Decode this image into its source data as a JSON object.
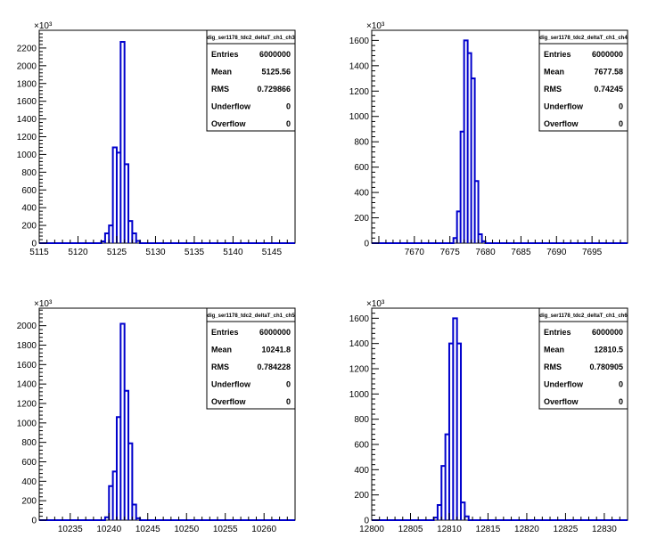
{
  "chart_data": [
    {
      "type": "histogram",
      "stats": {
        "title": "dig_ser1178_tdc2_deltaT_ch1_ch3",
        "rows": [
          {
            "label": "Entries",
            "value": "6000000"
          },
          {
            "label": "Mean",
            "value": "5125.56"
          },
          {
            "label": "RMS",
            "value": "0.729866"
          },
          {
            "label": "Underflow",
            "value": "0"
          },
          {
            "label": "Overflow",
            "value": "0"
          }
        ]
      },
      "xlim": [
        5115,
        5148
      ],
      "ylim": [
        0,
        2400
      ],
      "y_exponent": "×10³",
      "xticks": [
        5115,
        5120,
        5125,
        5130,
        5135,
        5140,
        5145
      ],
      "xtick_labels": [
        "5115",
        "5120",
        "5125",
        "5130",
        "5135",
        "5140",
        "5145"
      ],
      "yticks": [
        0,
        200,
        400,
        600,
        800,
        1000,
        1200,
        1400,
        1600,
        1800,
        2000,
        2200
      ],
      "ytick_labels": [
        "0",
        "200",
        "400",
        "600",
        "800",
        "1000",
        "1200",
        "1400",
        "1600",
        "1800",
        "2000",
        "2200"
      ],
      "bins": [
        [
          5123.0,
          5123.5,
          20
        ],
        [
          5123.5,
          5124.0,
          110
        ],
        [
          5124.0,
          5124.5,
          200
        ],
        [
          5124.5,
          5125.0,
          1080
        ],
        [
          5125.0,
          5125.5,
          1020
        ],
        [
          5125.5,
          5126.0,
          2270
        ],
        [
          5126.0,
          5126.5,
          890
        ],
        [
          5126.5,
          5127.0,
          250
        ],
        [
          5127.0,
          5127.5,
          110
        ],
        [
          5127.5,
          5128.0,
          25
        ]
      ],
      "color": "#0000cc"
    },
    {
      "type": "histogram",
      "stats": {
        "title": "dig_ser1178_tdc2_deltaT_ch1_ch4",
        "rows": [
          {
            "label": "Entries",
            "value": "6000000"
          },
          {
            "label": "Mean",
            "value": "7677.58"
          },
          {
            "label": "RMS",
            "value": "0.74245"
          },
          {
            "label": "Underflow",
            "value": "0"
          },
          {
            "label": "Overflow",
            "value": "0"
          }
        ]
      },
      "xlim": [
        7664,
        7700
      ],
      "ylim": [
        0,
        1680
      ],
      "y_exponent": "×10³",
      "xticks": [
        7670,
        7675,
        7680,
        7685,
        7690,
        7695
      ],
      "xtick_labels": [
        "7670",
        "7675",
        "7680",
        "7685",
        "7690",
        "7695"
      ],
      "yticks": [
        0,
        200,
        400,
        600,
        800,
        1000,
        1200,
        1400,
        1600
      ],
      "ytick_labels": [
        "0",
        "200",
        "400",
        "600",
        "800",
        "1000",
        "1200",
        "1400",
        "1600"
      ],
      "bins": [
        [
          7675.5,
          7676.0,
          40
        ],
        [
          7676.0,
          7676.5,
          250
        ],
        [
          7676.5,
          7677.0,
          880
        ],
        [
          7677.0,
          7677.5,
          1600
        ],
        [
          7677.5,
          7678.0,
          1500
        ],
        [
          7678.0,
          7678.5,
          1300
        ],
        [
          7678.5,
          7679.0,
          490
        ],
        [
          7679.0,
          7679.5,
          70
        ],
        [
          7679.5,
          7680.0,
          15
        ]
      ],
      "color": "#0000cc"
    },
    {
      "type": "histogram",
      "stats": {
        "title": "dig_ser1178_tdc2_deltaT_ch1_ch5",
        "rows": [
          {
            "label": "Entries",
            "value": "6000000"
          },
          {
            "label": "Mean",
            "value": "10241.8"
          },
          {
            "label": "RMS",
            "value": "0.784228"
          },
          {
            "label": "Underflow",
            "value": "0"
          },
          {
            "label": "Overflow",
            "value": "0"
          }
        ]
      },
      "xlim": [
        10231,
        10264
      ],
      "ylim": [
        0,
        2180
      ],
      "y_exponent": "×10³",
      "xticks": [
        10235,
        10240,
        10245,
        10250,
        10255,
        10260
      ],
      "xtick_labels": [
        "10235",
        "10240",
        "10245",
        "10250",
        "10255",
        "10260"
      ],
      "yticks": [
        0,
        200,
        400,
        600,
        800,
        1000,
        1200,
        1400,
        1600,
        1800,
        2000
      ],
      "ytick_labels": [
        "0",
        "200",
        "400",
        "600",
        "800",
        "1000",
        "1200",
        "1400",
        "1600",
        "1800",
        "2000"
      ],
      "bins": [
        [
          10239.5,
          10240.0,
          30
        ],
        [
          10240.0,
          10240.5,
          350
        ],
        [
          10240.5,
          10241.0,
          500
        ],
        [
          10241.0,
          10241.5,
          1060
        ],
        [
          10241.5,
          10242.0,
          2020
        ],
        [
          10242.0,
          10242.5,
          1330
        ],
        [
          10242.5,
          10243.0,
          790
        ],
        [
          10243.0,
          10243.5,
          160
        ],
        [
          10243.5,
          10244.0,
          20
        ]
      ],
      "color": "#0000cc"
    },
    {
      "type": "histogram",
      "stats": {
        "title": "dig_ser1178_tdc2_deltaT_ch1_ch6",
        "rows": [
          {
            "label": "Entries",
            "value": "6000000"
          },
          {
            "label": "Mean",
            "value": "12810.5"
          },
          {
            "label": "RMS",
            "value": "0.780905"
          },
          {
            "label": "Underflow",
            "value": "0"
          },
          {
            "label": "Overflow",
            "value": "0"
          }
        ]
      },
      "xlim": [
        12800,
        12833
      ],
      "ylim": [
        0,
        1680
      ],
      "y_exponent": "×10³",
      "xticks": [
        12800,
        12805,
        12810,
        12815,
        12820,
        12825,
        12830
      ],
      "xtick_labels": [
        "12800",
        "12805",
        "12810",
        "12815",
        "12820",
        "12825",
        "12830"
      ],
      "yticks": [
        0,
        200,
        400,
        600,
        800,
        1000,
        1200,
        1400,
        1600
      ],
      "ytick_labels": [
        "0",
        "200",
        "400",
        "600",
        "800",
        "1000",
        "1200",
        "1400",
        "1600"
      ],
      "bins": [
        [
          12808.0,
          12808.5,
          20
        ],
        [
          12808.5,
          12809.0,
          120
        ],
        [
          12809.0,
          12809.5,
          430
        ],
        [
          12809.5,
          12810.0,
          680
        ],
        [
          12810.0,
          12810.5,
          1400
        ],
        [
          12810.5,
          12811.0,
          1600
        ],
        [
          12811.0,
          12811.5,
          1400
        ],
        [
          12811.5,
          12812.0,
          140
        ],
        [
          12812.0,
          12812.5,
          30
        ]
      ],
      "color": "#0000cc"
    }
  ]
}
